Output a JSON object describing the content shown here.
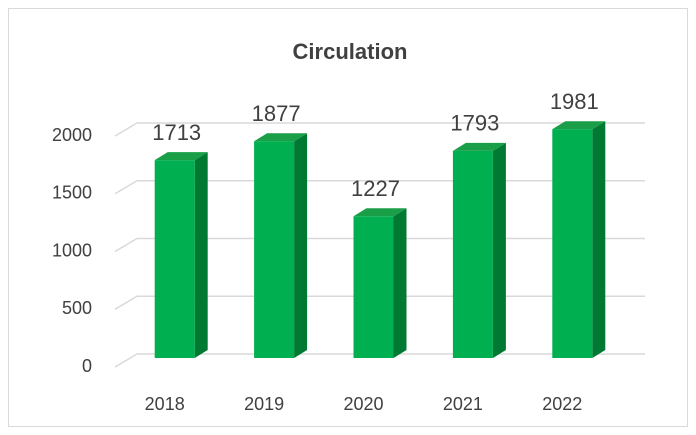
{
  "chart_data": {
    "type": "bar3d",
    "title": "Circulation",
    "categories": [
      "2018",
      "2019",
      "2020",
      "2021",
      "2022"
    ],
    "values": [
      1713,
      1877,
      1227,
      1793,
      1981
    ],
    "color": "#00b050",
    "ylim": [
      0,
      2000
    ],
    "yticks": [
      0,
      500,
      1000,
      1500,
      2000
    ],
    "grid": true
  }
}
